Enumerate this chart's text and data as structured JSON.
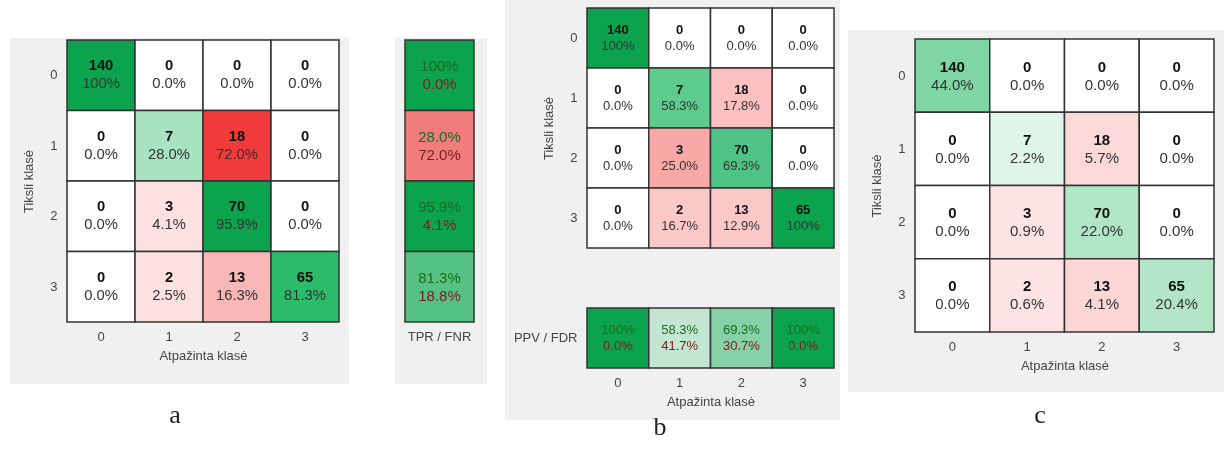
{
  "chart_data": [
    {
      "type": "heatmap",
      "xlabel": "Atpažinta klasė",
      "ylabel": "Tiksli klasė",
      "categories": [
        "0",
        "1",
        "2",
        "3"
      ],
      "y_categories": [
        "0",
        "1",
        "2",
        "3"
      ],
      "data_labels": true,
      "cells": [
        [
          140,
          0,
          0,
          0
        ],
        [
          0,
          7,
          18,
          0
        ],
        [
          0,
          3,
          70,
          0
        ],
        [
          0,
          2,
          13,
          65
        ]
      ],
      "colors": [
        [
          "#0ba34d",
          "#ffffff",
          "#ffffff",
          "#ffffff"
        ],
        [
          "#ffffff",
          "#a7e3c1",
          "#f23c3c",
          "#ffffff"
        ],
        [
          "#ffffff",
          "#fde0e0",
          "#0ba34d",
          "#ffffff"
        ],
        [
          "#ffffff",
          "#fde0e0",
          "#f9b8b8",
          "#2bbb6b"
        ]
      ],
      "annotations": [
        "a",
        "100%",
        "0.0%",
        "0.0%",
        "0.0%",
        "0.0%",
        "28.0%",
        "72.0%",
        "0.0%",
        "0.0%",
        "4.1%",
        "95.9%",
        "0.0%",
        "0.0%",
        "2.5%",
        "16.3%",
        "81.3%"
      ]
    },
    {
      "type": "heatmap",
      "categories": [
        "TPR / FNR"
      ],
      "y_categories": [
        "0",
        "1",
        "2",
        "3"
      ],
      "tick_labels": "x",
      "cells": [
        [
          100
        ],
        [
          28.0
        ],
        [
          95.9
        ],
        [
          81.3
        ]
      ],
      "cell_labels": [
        [
          "100%"
        ],
        [
          "28.0%"
        ],
        [
          "95.9%"
        ],
        [
          "81.3%"
        ]
      ],
      "colors": [
        [
          "#0ba34d"
        ],
        [
          "#f07c7c"
        ],
        [
          "#0ba34d"
        ],
        [
          "#55c283"
        ]
      ],
      "annotations": [
        "0.0%",
        "72.0%",
        "4.1%",
        "18.8%"
      ]
    },
    {
      "type": "heatmap",
      "ylabel": "Tiksli klasė",
      "categories": [
        "0",
        "1",
        "2",
        "3"
      ],
      "y_categories": [
        "0",
        "1",
        "2",
        "3"
      ],
      "tick_labels": "y",
      "data_labels": true,
      "cells": [
        [
          140,
          0,
          0,
          0
        ],
        [
          0,
          7,
          18,
          0
        ],
        [
          0,
          3,
          70,
          0
        ],
        [
          0,
          2,
          13,
          65
        ]
      ],
      "colors": [
        [
          "#0ba34d",
          "#ffffff",
          "#ffffff",
          "#ffffff"
        ],
        [
          "#ffffff",
          "#5ecb8e",
          "#fbc0c0",
          "#ffffff"
        ],
        [
          "#ffffff",
          "#f9a8a8",
          "#4fc386",
          "#ffffff"
        ],
        [
          "#ffffff",
          "#fbc8c8",
          "#fbc8c8",
          "#0ba34d"
        ]
      ],
      "annotations": [
        "100%",
        "0.0%",
        "0.0%",
        "0.0%",
        "0.0%",
        "58.3%",
        "17.8%",
        "0.0%",
        "0.0%",
        "25.0%",
        "69.3%",
        "0.0%",
        "0.0%",
        "16.7%",
        "12.9%",
        "100%"
      ]
    },
    {
      "type": "heatmap",
      "xlabel": "Atpažinta klasė",
      "categories": [
        "0",
        "1",
        "2",
        "3"
      ],
      "y_categories": [
        "PPV / FDR"
      ],
      "cells": [
        [
          100,
          58.3,
          69.3,
          100
        ]
      ],
      "cell_labels": [
        [
          "100%",
          "58.3%",
          "69.3%",
          "100%"
        ]
      ],
      "colors": [
        [
          "#0ba34d",
          "#c2e6d1",
          "#86d1a7",
          "#0ba34d"
        ]
      ],
      "annotations": [
        "b",
        "0.0%",
        "41.7%",
        "30.7%",
        "0.0%"
      ]
    },
    {
      "type": "heatmap",
      "xlabel": "Atpažinta klasė",
      "ylabel": "Tiksli klasė",
      "categories": [
        "0",
        "1",
        "2",
        "3"
      ],
      "y_categories": [
        "0",
        "1",
        "2",
        "3"
      ],
      "data_labels": true,
      "cells": [
        [
          140,
          0,
          0,
          0
        ],
        [
          0,
          7,
          18,
          0
        ],
        [
          0,
          3,
          70,
          0
        ],
        [
          0,
          2,
          13,
          65
        ]
      ],
      "colors": [
        [
          "#7fd6a4",
          "#ffffff",
          "#ffffff",
          "#ffffff"
        ],
        [
          "#ffffff",
          "#e0f5e9",
          "#fcd8d8",
          "#ffffff"
        ],
        [
          "#ffffff",
          "#fde3e3",
          "#b0e5c6",
          "#ffffff"
        ],
        [
          "#ffffff",
          "#fde3e3",
          "#fcd5d5",
          "#b3e6c8"
        ]
      ],
      "annotations": [
        "c",
        "44.0%",
        "0.0%",
        "0.0%",
        "0.0%",
        "0.0%",
        "2.2%",
        "5.7%",
        "0.0%",
        "0.0%",
        "0.9%",
        "22.0%",
        "0.0%",
        "0.0%",
        "0.6%",
        "4.1%",
        "20.4%"
      ]
    }
  ]
}
